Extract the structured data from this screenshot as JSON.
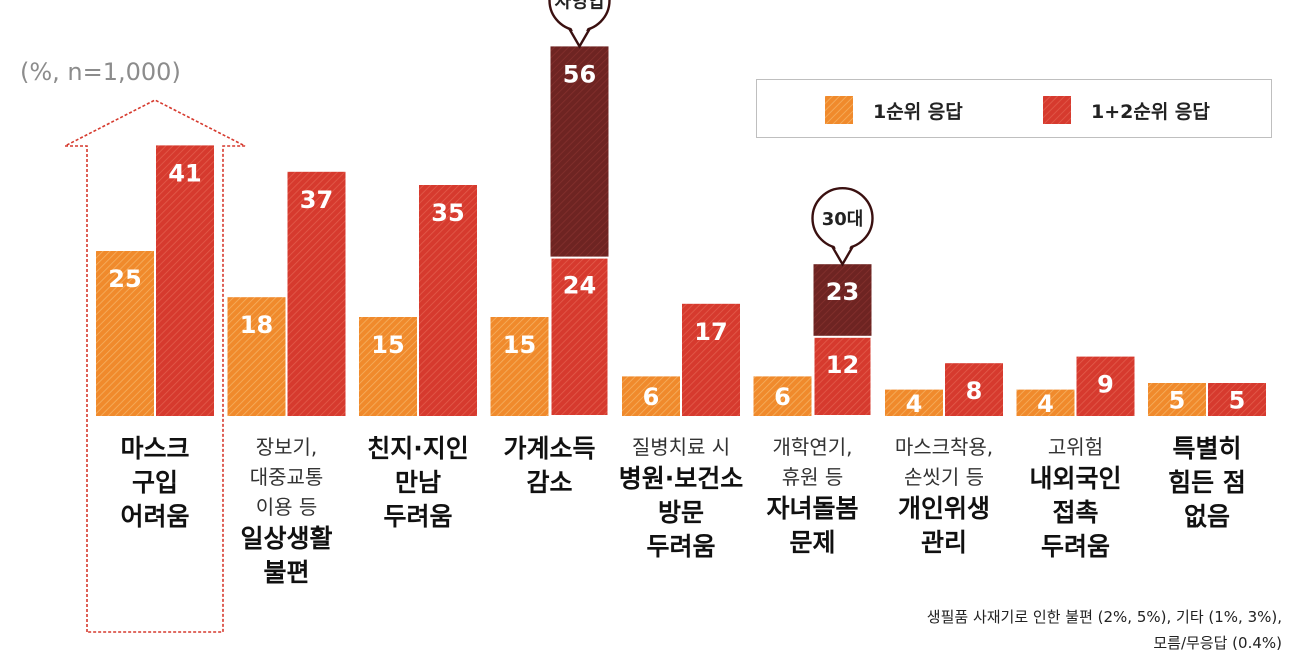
{
  "unit_label": "(%, n=1,000)",
  "legend": {
    "first": "1순위 응답",
    "both": "1+2순위 응답"
  },
  "colors": {
    "first": "#f08a2c",
    "both": "#d63a2e",
    "highlight": "#6e2422",
    "arrow": "#d63a2e"
  },
  "chart_data": {
    "type": "bar",
    "categories": [
      "마스크 구입 어려움",
      "장보기, 대중교통 이용 등 일상생활 불편",
      "친지·지인 만남 두려움",
      "가계소득 감소",
      "질병치료 시 병원·보건소 방문 두려움",
      "개학연기, 휴원 등 자녀돌봄 문제",
      "마스크착용, 손씻기 등 개인위생 관리",
      "고위험 내외국인 접촉 두려움",
      "특별히 힘든 점 없음"
    ],
    "series": [
      {
        "name": "1순위 응답",
        "values": [
          25,
          18,
          15,
          15,
          6,
          6,
          4,
          4,
          5
        ]
      },
      {
        "name": "1+2순위 응답",
        "values": [
          41,
          37,
          35,
          24,
          17,
          12,
          8,
          9,
          5
        ]
      }
    ],
    "highlights": [
      {
        "category_index": 3,
        "label": "자영업",
        "value": 56
      },
      {
        "category_index": 5,
        "label": "30대",
        "value": 23
      }
    ],
    "ylim": [
      0,
      60
    ],
    "legend_position": "top-right",
    "grid": false
  },
  "category_labels": [
    [
      {
        "t": "마스크",
        "s": "b"
      },
      {
        "t": "구입",
        "s": "b"
      },
      {
        "t": "어려움",
        "s": "b"
      }
    ],
    [
      {
        "t": "장보기,",
        "s": "n"
      },
      {
        "t": "대중교통",
        "s": "n"
      },
      {
        "t": "이용 등",
        "s": "n"
      },
      {
        "t": "일상생활",
        "s": "b"
      },
      {
        "t": "불편",
        "s": "b"
      }
    ],
    [
      {
        "t": "친지·지인",
        "s": "b"
      },
      {
        "t": "만남",
        "s": "b"
      },
      {
        "t": "두려움",
        "s": "b"
      }
    ],
    [
      {
        "t": "가계소득",
        "s": "b"
      },
      {
        "t": "감소",
        "s": "b"
      }
    ],
    [
      {
        "t": "질병치료 시",
        "s": "n"
      },
      {
        "t": "병원·보건소",
        "s": "b"
      },
      {
        "t": "방문",
        "s": "b"
      },
      {
        "t": "두려움",
        "s": "b"
      }
    ],
    [
      {
        "t": "개학연기,",
        "s": "n"
      },
      {
        "t": "휴원 등",
        "s": "n"
      },
      {
        "t": "자녀돌봄",
        "s": "b"
      },
      {
        "t": "문제",
        "s": "b"
      }
    ],
    [
      {
        "t": "마스크착용,",
        "s": "n"
      },
      {
        "t": "손씻기 등",
        "s": "n"
      },
      {
        "t": "개인위생",
        "s": "b"
      },
      {
        "t": "관리",
        "s": "b"
      }
    ],
    [
      {
        "t": "고위험",
        "s": "n"
      },
      {
        "t": "내외국인",
        "s": "b"
      },
      {
        "t": "접촉",
        "s": "b"
      },
      {
        "t": "두려움",
        "s": "b"
      }
    ],
    [
      {
        "t": "특별히",
        "s": "b"
      },
      {
        "t": "힘든 점",
        "s": "b"
      },
      {
        "t": "없음",
        "s": "b"
      }
    ]
  ],
  "footnote": {
    "line1": "생필품 사재기로 인한 불편 (2%, 5%),  기타 (1%, 3%),",
    "line2": "모름/무응답 (0.4%)"
  }
}
